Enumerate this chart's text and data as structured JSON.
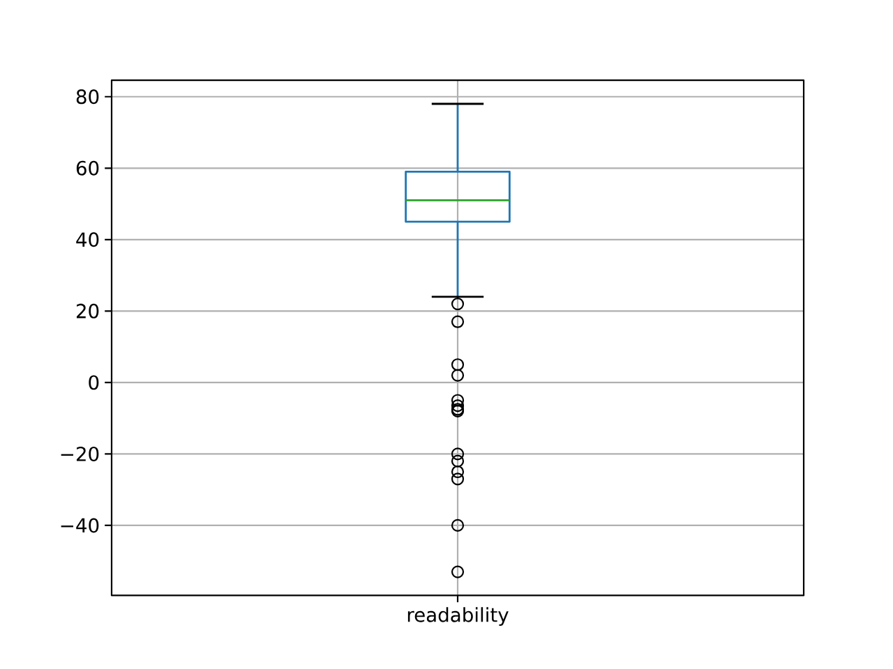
{
  "chart_data": {
    "type": "box",
    "categories": [
      "readability"
    ],
    "color": "#1f77b4",
    "boxes": [
      {
        "low": 24,
        "q1": 45,
        "median": 51,
        "q3": 59,
        "high": 78,
        "outliers": [
          22,
          17,
          5,
          2,
          -5,
          -6.5,
          -7.5,
          -8,
          -20,
          -22,
          -25,
          -27,
          -40,
          -53
        ]
      }
    ],
    "ylim": [
      -59.6,
      84.6
    ],
    "yticks": [
      {
        "value": -40,
        "label": "−40"
      },
      {
        "value": -20,
        "label": "−20"
      },
      0,
      20,
      40,
      60,
      80
    ],
    "grid": true,
    "marker": "circle"
  }
}
